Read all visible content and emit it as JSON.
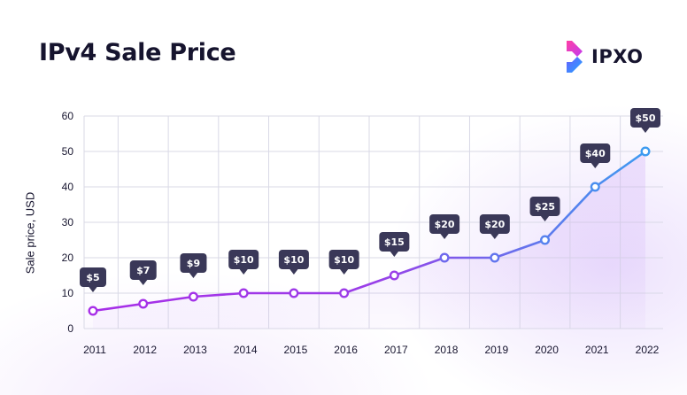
{
  "header": {
    "title": "IPv4 Sale Price",
    "logo_text": "IPXO"
  },
  "colors": {
    "line_start": "#a72ee8",
    "line_end": "#3d9bf0",
    "bubble": "#3a3858",
    "grid": "#d9d9e6",
    "text": "#16142e"
  },
  "chart_data": {
    "type": "line",
    "title": "IPv4 Sale Price",
    "xlabel": "",
    "ylabel": "Sale price, USD",
    "x": [
      "2011",
      "2012",
      "2013",
      "2014",
      "2015",
      "2016",
      "2017",
      "2018",
      "2019",
      "2020",
      "2021",
      "2022"
    ],
    "series": [
      {
        "values": [
          5,
          7,
          9,
          10,
          10,
          10,
          15,
          20,
          20,
          25,
          40,
          50
        ],
        "data_labels": [
          "$5",
          "$7",
          "$9",
          "$10",
          "$10",
          "$10",
          "$15",
          "$20",
          "$20",
          "$25",
          "$40",
          "$50"
        ]
      }
    ],
    "ylim": [
      0,
      60
    ],
    "yticks": [
      "0",
      "10",
      "20",
      "30",
      "40",
      "50",
      "60"
    ],
    "grid": true,
    "legend": "none"
  }
}
